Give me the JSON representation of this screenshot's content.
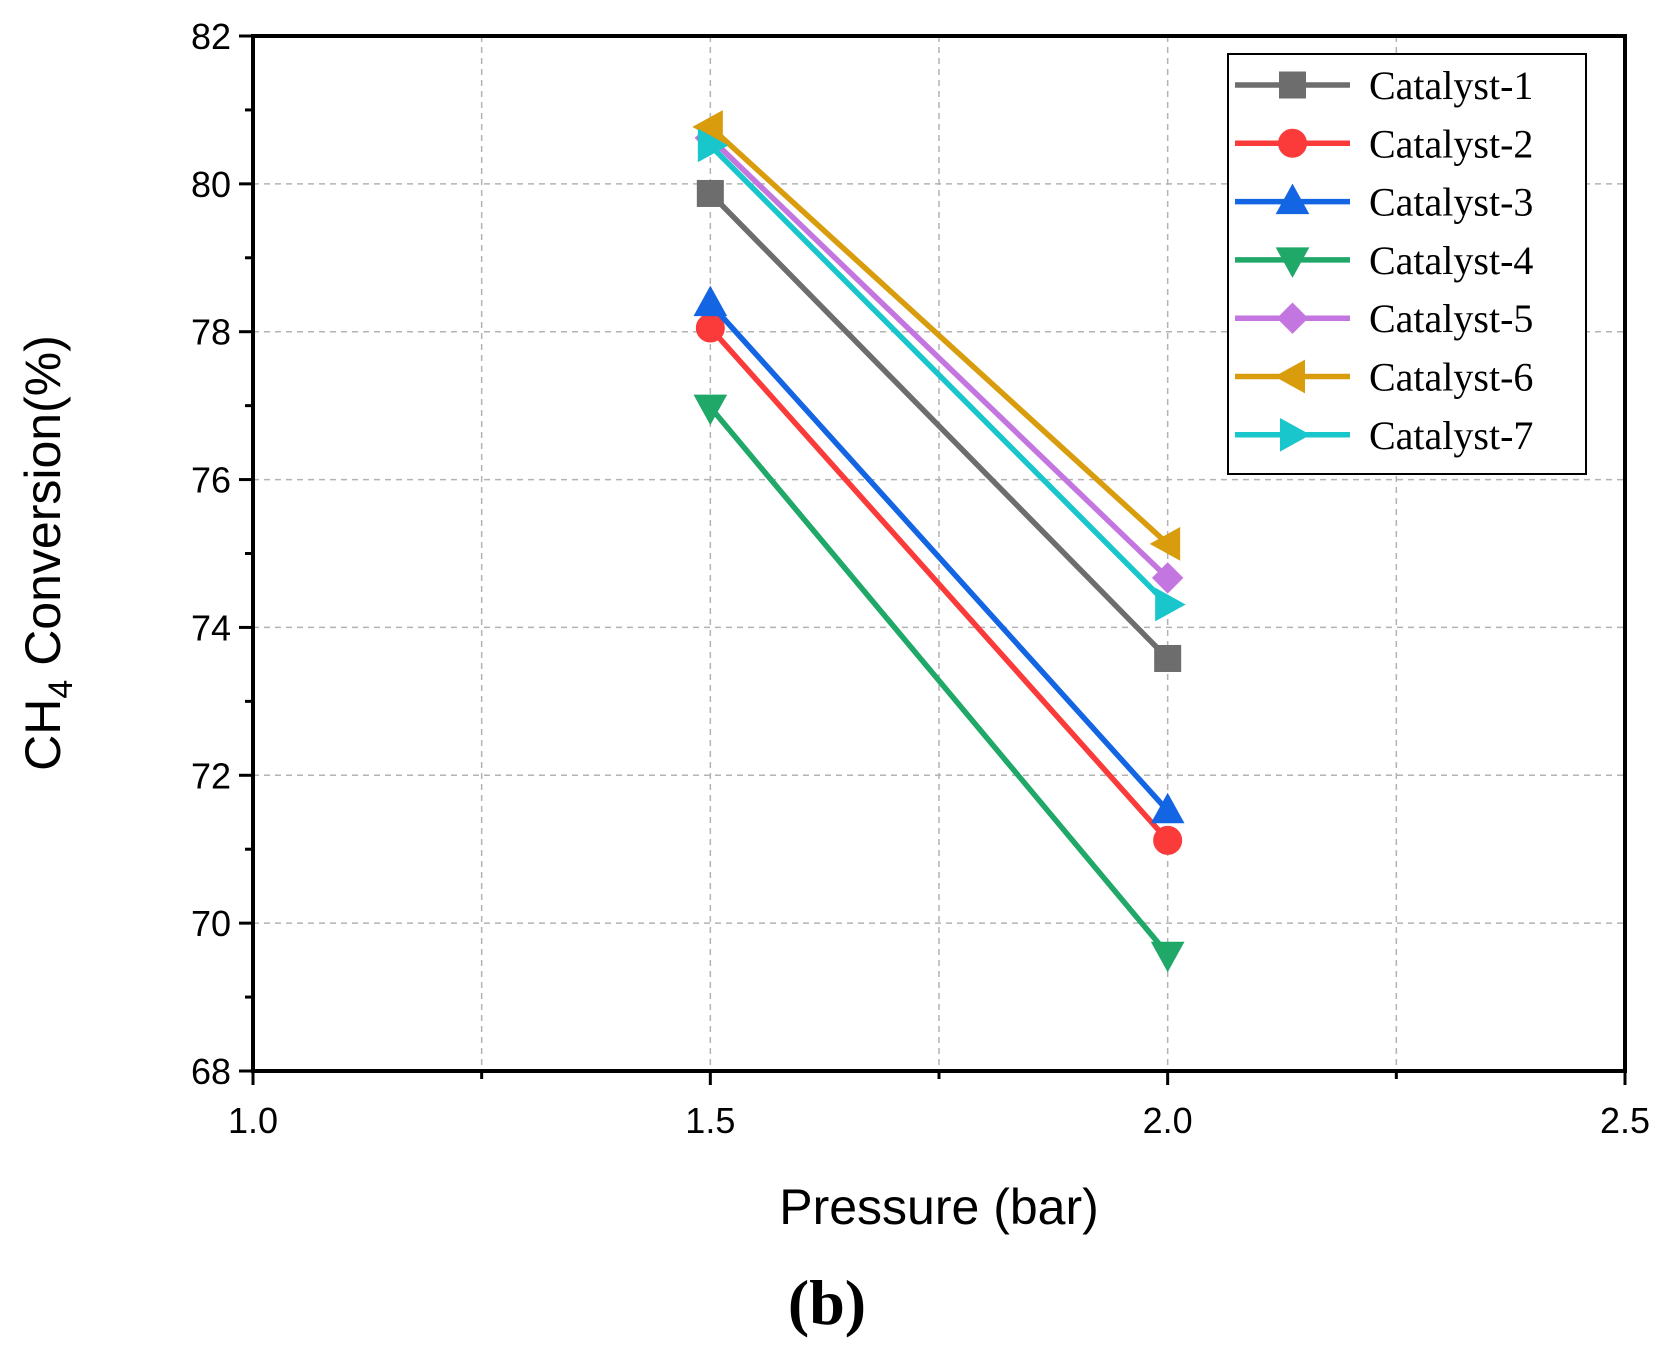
{
  "chart_data": {
    "type": "line",
    "title": "",
    "caption": "(b)",
    "xlabel": "Pressure (bar)",
    "ylabel": {
      "prefix": "CH",
      "subscript": "4",
      "suffix": " Conversion(%)"
    },
    "xlim": [
      1.0,
      2.5
    ],
    "ylim": [
      68,
      82
    ],
    "xticks": [
      "1.0",
      "1.5",
      "2.0",
      "2.5"
    ],
    "yticks": [
      "68",
      "70",
      "72",
      "74",
      "76",
      "78",
      "80",
      "82"
    ],
    "grid": true,
    "legend_position": "top-right",
    "x": [
      1.5,
      2.0
    ],
    "series": [
      {
        "name": "Catalyst-1",
        "values": [
          79.87,
          73.58
        ],
        "color": "#6d6d6d",
        "marker": "square"
      },
      {
        "name": "Catalyst-2",
        "values": [
          78.05,
          71.12
        ],
        "color": "#fb3a3a",
        "marker": "circle"
      },
      {
        "name": "Catalyst-3",
        "values": [
          78.38,
          71.52
        ],
        "color": "#1465e4",
        "marker": "triangle-up"
      },
      {
        "name": "Catalyst-4",
        "values": [
          76.98,
          69.58
        ],
        "color": "#1fa867",
        "marker": "triangle-down"
      },
      {
        "name": "Catalyst-5",
        "values": [
          80.62,
          74.67
        ],
        "color": "#c476e0",
        "marker": "diamond"
      },
      {
        "name": "Catalyst-6",
        "values": [
          80.77,
          75.13
        ],
        "color": "#d89c0c",
        "marker": "triangle-left"
      },
      {
        "name": "Catalyst-7",
        "values": [
          80.52,
          74.31
        ],
        "color": "#19c6cc",
        "marker": "triangle-right"
      }
    ]
  }
}
